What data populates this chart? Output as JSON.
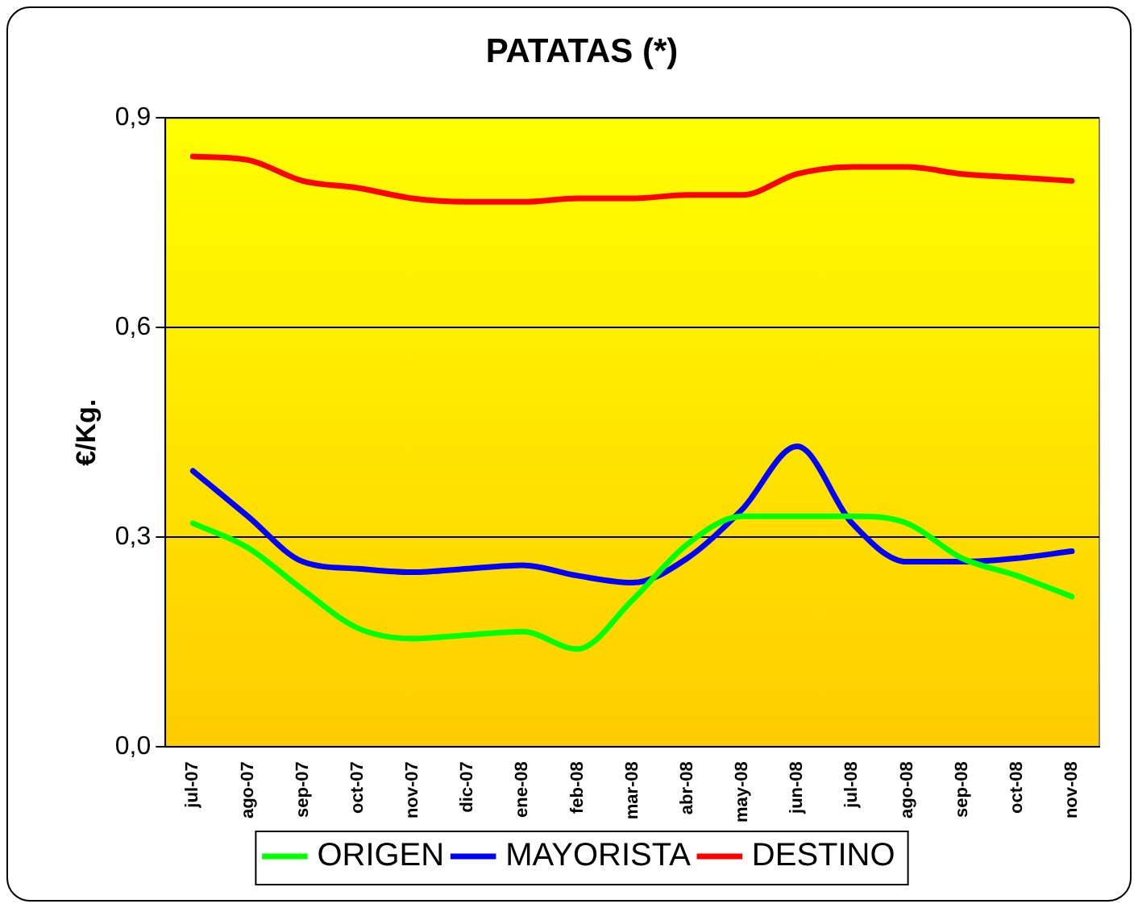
{
  "chart_data": {
    "type": "line",
    "title": "PATATAS (*)",
    "ylabel": "€/Kg.",
    "categories": [
      "jul-07",
      "ago-07",
      "sep-07",
      "oct-07",
      "nov-07",
      "dic-07",
      "ene-08",
      "feb-08",
      "mar-08",
      "abr-08",
      "may-08",
      "jun-08",
      "jul-08",
      "ago-08",
      "sep-08",
      "oct-08",
      "nov-08"
    ],
    "series": [
      {
        "name": "ORIGEN",
        "color": "#00ff00",
        "values": [
          0.32,
          0.285,
          0.225,
          0.17,
          0.155,
          0.16,
          0.165,
          0.14,
          0.21,
          0.29,
          0.33,
          0.33,
          0.33,
          0.32,
          0.27,
          0.245,
          0.215
        ]
      },
      {
        "name": "MAYORISTA",
        "color": "#0000ff",
        "values": [
          0.395,
          0.33,
          0.265,
          0.255,
          0.25,
          0.255,
          0.26,
          0.245,
          0.235,
          0.27,
          0.34,
          0.43,
          0.32,
          0.265,
          0.265,
          0.27,
          0.28
        ]
      },
      {
        "name": "DESTINO",
        "color": "#ff0000",
        "values": [
          0.845,
          0.84,
          0.81,
          0.8,
          0.785,
          0.78,
          0.78,
          0.785,
          0.785,
          0.79,
          0.79,
          0.82,
          0.83,
          0.83,
          0.82,
          0.815,
          0.81
        ]
      }
    ],
    "ylim": [
      0,
      0.9
    ],
    "yticks": [
      {
        "value": 0,
        "label": "0,0"
      },
      {
        "value": 0.3,
        "label": "0,3"
      },
      {
        "value": 0.6,
        "label": "0,6"
      },
      {
        "value": 0.9,
        "label": "0,9"
      }
    ],
    "grid": "y",
    "legend": "bottom",
    "marker": "none",
    "line_style": "solid"
  }
}
